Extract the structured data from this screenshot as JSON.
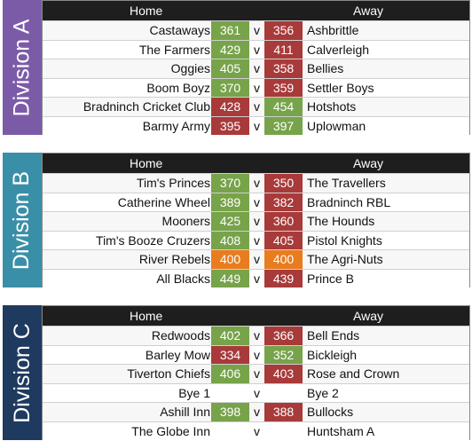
{
  "colors": {
    "win": "#77a34a",
    "loss": "#a83a3a",
    "draw": "#e87c1e"
  },
  "headers": {
    "home": "Home",
    "away": "Away"
  },
  "divisions": [
    {
      "label": "Division A",
      "color": "#7b5ba8",
      "fixtures": [
        {
          "home": "Castaways",
          "home_score": "361",
          "v": "v",
          "away_score": "356",
          "away": "Ashbrittle"
        },
        {
          "home": "The Farmers",
          "home_score": "429",
          "v": "v",
          "away_score": "411",
          "away": "Calverleigh"
        },
        {
          "home": "Oggies",
          "home_score": "405",
          "v": "v",
          "away_score": "358",
          "away": "Bellies"
        },
        {
          "home": "Boom Boyz",
          "home_score": "370",
          "v": "v",
          "away_score": "359",
          "away": "Settler Boys"
        },
        {
          "home": "Bradninch Cricket Club",
          "home_score": "428",
          "v": "v",
          "away_score": "454",
          "away": "Hotshots"
        },
        {
          "home": "Barmy Army",
          "home_score": "395",
          "v": "v",
          "away_score": "397",
          "away": "Uplowman"
        }
      ]
    },
    {
      "label": "Division B",
      "color": "#3a8fa8",
      "fixtures": [
        {
          "home": "Tim's Princes",
          "home_score": "370",
          "v": "v",
          "away_score": "350",
          "away": "The Travellers"
        },
        {
          "home": "Catherine Wheel",
          "home_score": "389",
          "v": "v",
          "away_score": "382",
          "away": "Bradninch RBL"
        },
        {
          "home": "Mooners",
          "home_score": "425",
          "v": "v",
          "away_score": "360",
          "away": "The Hounds"
        },
        {
          "home": "Tim's Booze Cruzers",
          "home_score": "408",
          "v": "v",
          "away_score": "405",
          "away": "Pistol Knights"
        },
        {
          "home": "River Rebels",
          "home_score": "400",
          "v": "v",
          "away_score": "400",
          "away": "The Agri-Nuts"
        },
        {
          "home": "All Blacks",
          "home_score": "449",
          "v": "v",
          "away_score": "439",
          "away": "Prince B"
        }
      ]
    },
    {
      "label": "Division C",
      "color": "#1f3a5f",
      "fixtures": [
        {
          "home": "Redwoods",
          "home_score": "402",
          "v": "v",
          "away_score": "366",
          "away": "Bell Ends"
        },
        {
          "home": "Barley Mow",
          "home_score": "334",
          "v": "v",
          "away_score": "352",
          "away": "Bickleigh"
        },
        {
          "home": "Tiverton Chiefs",
          "home_score": "406",
          "v": "v",
          "away_score": "403",
          "away": "Rose and Crown"
        },
        {
          "home": "Bye 1",
          "home_score": "",
          "v": "v",
          "away_score": "",
          "away": "Bye 2"
        },
        {
          "home": "Ashill Inn",
          "home_score": "398",
          "v": "v",
          "away_score": "388",
          "away": "Bullocks"
        },
        {
          "home": "The Globe Inn",
          "home_score": "",
          "v": "v",
          "away_score": "",
          "away": "Huntsham A"
        }
      ]
    }
  ]
}
